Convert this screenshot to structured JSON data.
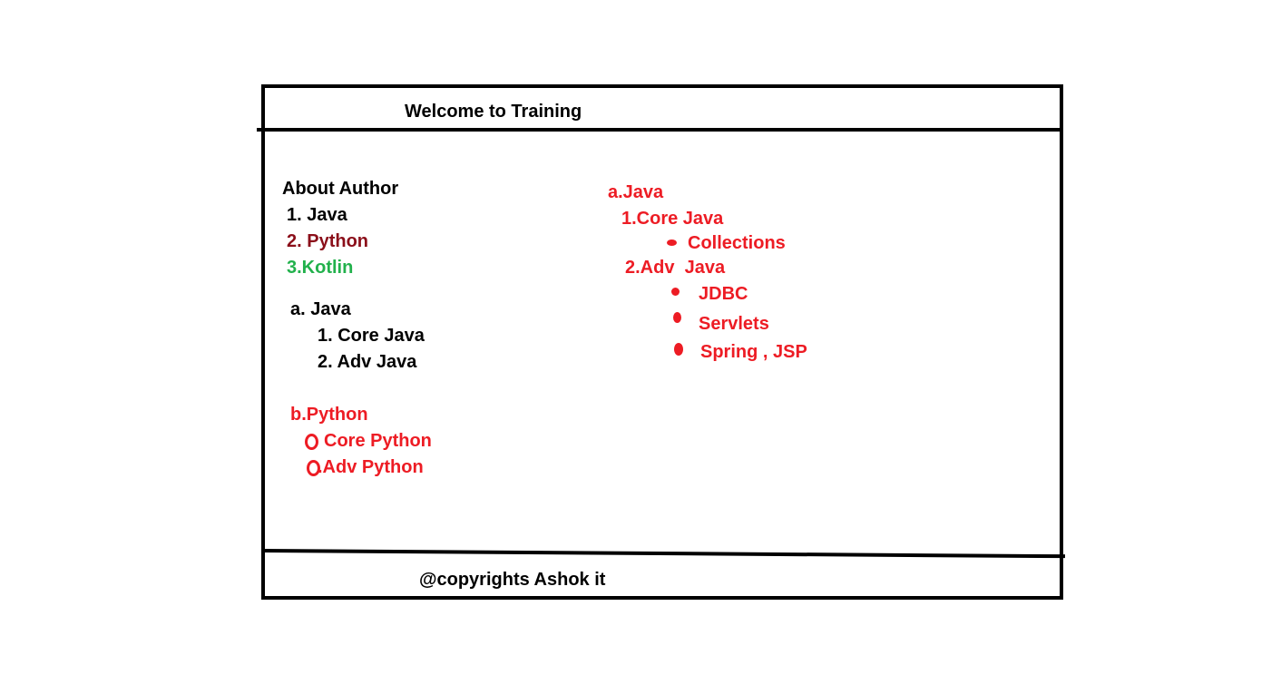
{
  "header": {
    "title": "Welcome to Training"
  },
  "footer": {
    "text": "@copyrights Ashok it"
  },
  "left": {
    "about": "About Author",
    "menu": [
      "1. Java",
      "2. Python",
      "3.Kotlin"
    ],
    "java_heading": "a. Java",
    "java_items": [
      "1. Core Java",
      "2. Adv Java"
    ],
    "python_heading": "b.Python",
    "python_items": [
      "Core Python",
      ".Adv Python"
    ]
  },
  "right": {
    "java_heading": "a.Java",
    "core_java": "1.Core Java",
    "core_items": [
      "Collections"
    ],
    "adv_java": "2.Adv  Java",
    "adv_items": [
      "JDBC",
      "Servlets",
      "Spring , JSP"
    ]
  },
  "colors": {
    "black": "#000000",
    "maroon": "#8b0f1a",
    "green": "#22b14c",
    "red": "#ed1c24"
  }
}
